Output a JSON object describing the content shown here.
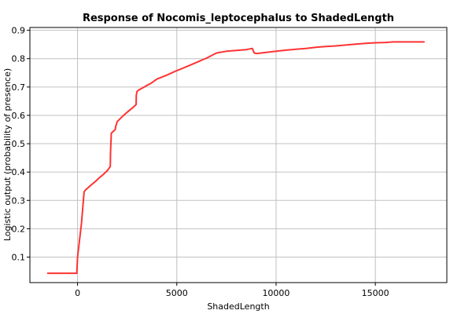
{
  "chart_data": {
    "type": "line",
    "title": "Response of Nocomis_leptocephalus to ShadedLength",
    "xlabel": "ShadedLength",
    "ylabel": "Logistic output (probability of presence)",
    "xlim": [
      -2400,
      18600
    ],
    "ylim": [
      0.01,
      0.91
    ],
    "x_ticks": [
      0,
      5000,
      10000,
      15000
    ],
    "x_tick_labels": [
      "0",
      "5000",
      "10000",
      "15000"
    ],
    "y_ticks": [
      0.1,
      0.2,
      0.3,
      0.4,
      0.5,
      0.6,
      0.7,
      0.8,
      0.9
    ],
    "y_tick_labels": [
      "0.1",
      "0.2",
      "0.3",
      "0.4",
      "0.5",
      "0.6",
      "0.7",
      "0.8",
      "0.9"
    ],
    "grid": true,
    "colors": {
      "series": "#ff3333"
    },
    "series": [
      {
        "x": [
          -1500,
          -40,
          0,
          200,
          330,
          400,
          500,
          700,
          900,
          1100,
          1300,
          1500,
          1650,
          1660,
          1700,
          1900,
          1920,
          2000,
          2200,
          2400,
          2600,
          2800,
          2950,
          2960,
          3000,
          3100,
          3300,
          3500,
          3700,
          4000,
          4500,
          5000,
          5500,
          6000,
          6500,
          7000,
          7500,
          8000,
          8500,
          8800,
          8900,
          9000,
          9500,
          10000,
          10500,
          11000,
          11500,
          12000,
          12500,
          13000,
          13500,
          14000,
          14500,
          15000,
          15500,
          15900,
          16500,
          17000,
          17450
        ],
        "y": [
          0.043,
          0.043,
          0.1,
          0.22,
          0.33,
          0.337,
          0.343,
          0.355,
          0.367,
          0.38,
          0.392,
          0.405,
          0.42,
          0.47,
          0.537,
          0.55,
          0.56,
          0.578,
          0.592,
          0.605,
          0.617,
          0.628,
          0.638,
          0.672,
          0.685,
          0.69,
          0.698,
          0.706,
          0.713,
          0.728,
          0.742,
          0.758,
          0.772,
          0.787,
          0.802,
          0.82,
          0.826,
          0.829,
          0.832,
          0.836,
          0.82,
          0.818,
          0.822,
          0.826,
          0.83,
          0.833,
          0.836,
          0.84,
          0.843,
          0.845,
          0.848,
          0.851,
          0.854,
          0.856,
          0.857,
          0.859,
          0.859,
          0.859,
          0.859
        ]
      }
    ]
  }
}
